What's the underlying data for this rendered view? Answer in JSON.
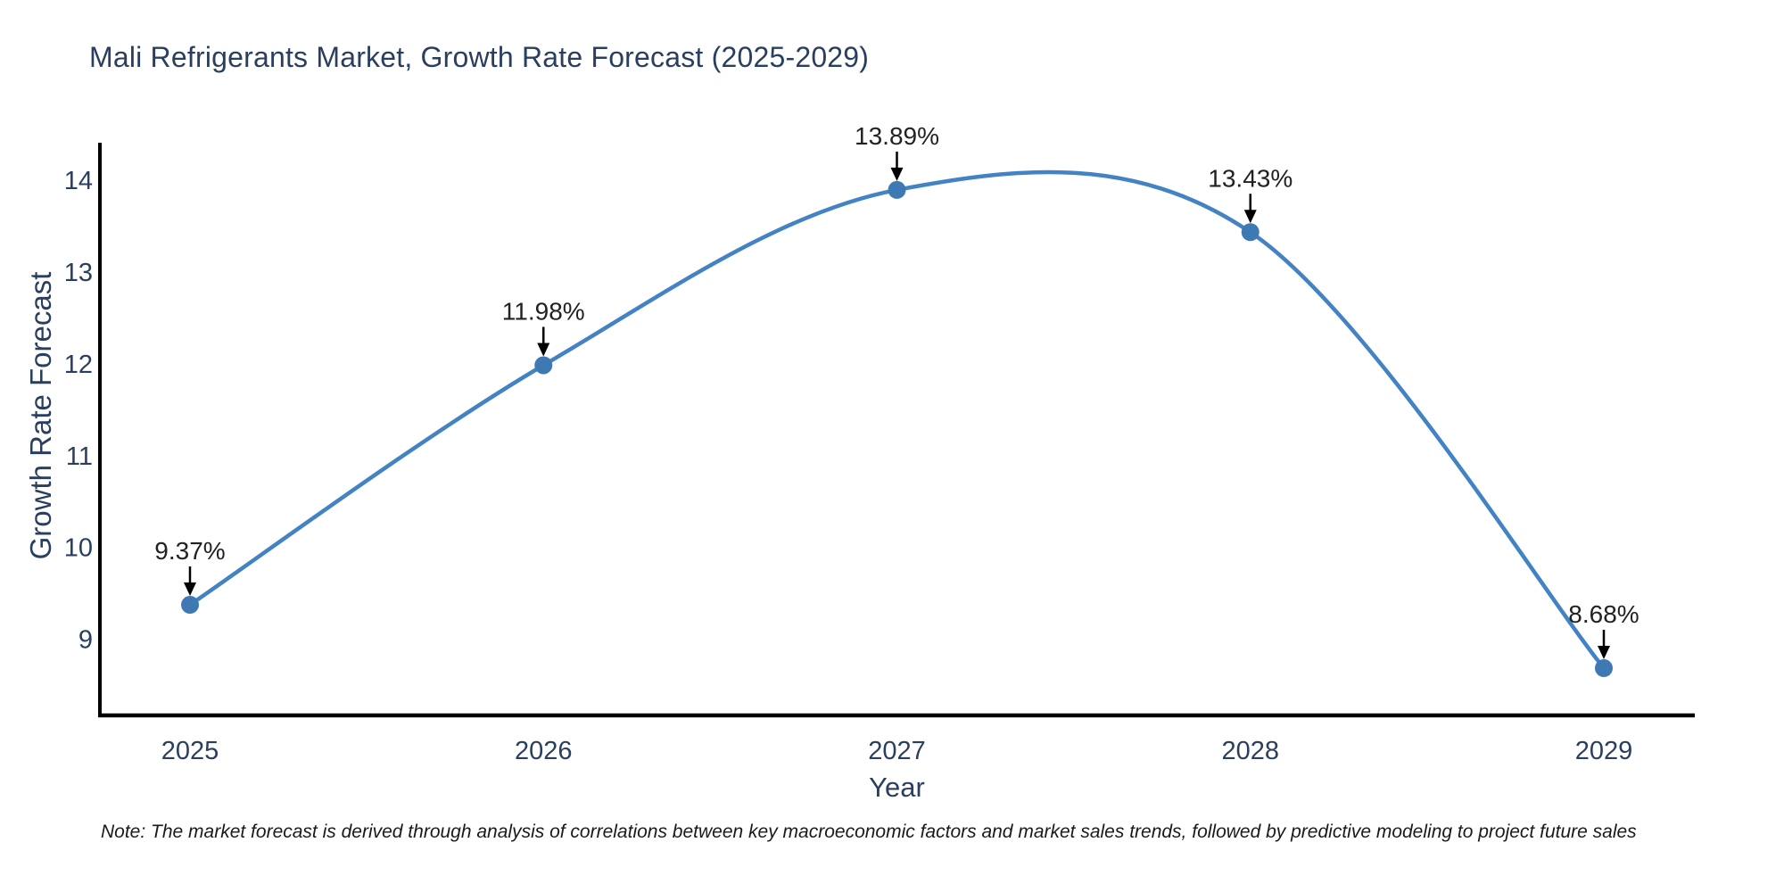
{
  "page": {
    "title": "Mali Refrigerants Market, Growth Rate Forecast (2025-2029)",
    "note": "Note: The market forecast is derived through analysis of correlations between key macroeconomic factors and market sales trends, followed by predictive modeling to project future sales"
  },
  "chart_data": {
    "type": "line",
    "title": "Mali Refrigerants Market, Growth Rate Forecast (2025-2029)",
    "xlabel": "Year",
    "ylabel": "Growth Rate Forecast",
    "categories": [
      "2025",
      "2026",
      "2027",
      "2028",
      "2029"
    ],
    "series": [
      {
        "name": "Growth Rate Forecast",
        "values": [
          9.37,
          11.98,
          13.89,
          13.43,
          8.68
        ],
        "data_labels": [
          "9.37%",
          "11.98%",
          "13.89%",
          "13.43%",
          "8.68%"
        ]
      }
    ],
    "y_ticks": [
      9,
      10,
      11,
      12,
      13,
      14
    ],
    "ylim": [
      8.2,
      14.45
    ],
    "line_shape": "spline",
    "markers": true,
    "grid": false,
    "legend": "none",
    "annotation_arrows": "down-arrow-to-point",
    "colors": {
      "line": "#4383c3",
      "marker": "#3f79b3",
      "axis": "#000000",
      "tick_label": "#2a3f5f",
      "axis_title": "#2a3f5f",
      "title": "#2a3f5f",
      "annotation_text": "#222222",
      "annotation_arrow": "#000000",
      "background": "#ffffff"
    }
  }
}
